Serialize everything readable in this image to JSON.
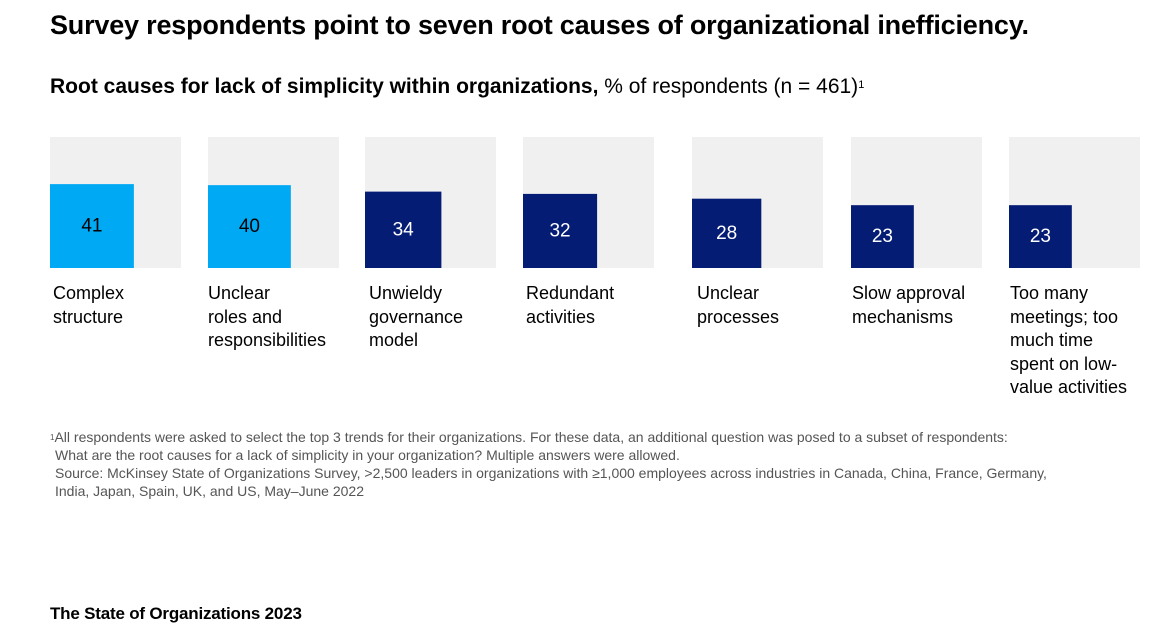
{
  "headline": "Survey respondents point to seven root causes of organizational inefficiency.",
  "subtitle": {
    "bold": "Root causes for lack of simplicity within organizations,",
    "regular": " % of respondents (n = 461)",
    "footnote_marker": "1"
  },
  "colors": {
    "track": "#f0f0f0",
    "highlight": "#00a9f4",
    "standard": "#051c75",
    "highlight_text": "#000000",
    "standard_text": "#ffffff"
  },
  "chart_data": {
    "type": "bar",
    "title": "Root causes for lack of simplicity within organizations",
    "ylabel": "% of respondents (n = 461)",
    "ylim": [
      0,
      100
    ],
    "categories": [
      "Complex structure",
      "Unclear roles and responsibilities",
      "Unwieldy governance model",
      "Redundant activities",
      "Unclear processes",
      "Slow approval mechanisms",
      "Too many meetings; too much time spent on low-value activities"
    ],
    "values": [
      41,
      40,
      34,
      32,
      28,
      23,
      23
    ],
    "highlighted": [
      true,
      true,
      false,
      false,
      false,
      false,
      false
    ],
    "grid": false
  },
  "category_labels": [
    [
      "Complex",
      "structure"
    ],
    [
      "Unclear",
      "roles and",
      "responsibilities"
    ],
    [
      "Unwieldy",
      "governance",
      "model"
    ],
    [
      "Redundant",
      "activities"
    ],
    [
      "Unclear",
      "processes"
    ],
    [
      "Slow approval",
      "mechanisms"
    ],
    [
      "Too many",
      "meetings; too",
      "much time",
      "spent on low-",
      "value activities"
    ]
  ],
  "footnote": {
    "marker": "1",
    "line1": "All respondents were asked to select the top 3 trends for their organizations. For these data, an additional question was posed to a subset of respondents:",
    "line2": "What are the root causes for a lack of simplicity in your organization? Multiple answers were allowed.",
    "source1": "Source: McKinsey State of Organizations Survey, >2,500 leaders in organizations with ≥1,000 employees across industries in Canada, China, France, Germany,",
    "source2": "India, Japan, Spain, UK, and US, May–June 2022"
  },
  "brand": "The State of Organizations 2023"
}
